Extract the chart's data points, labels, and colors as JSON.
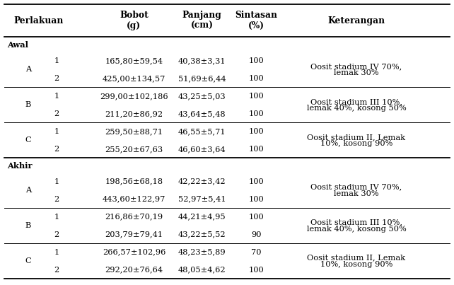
{
  "col_x": {
    "per1": 0.062,
    "per2": 0.125,
    "bobot": 0.295,
    "panjang": 0.445,
    "sintasan": 0.565,
    "ket": 0.785
  },
  "bg_color": "#ffffff",
  "fs": 8.2,
  "hfs": 8.8,
  "sections": [
    {
      "group": "Awal",
      "pairs": [
        {
          "per": "A",
          "rows": [
            {
              "rep": "1",
              "bobot": "165,80±59,54",
              "panjang": "40,38±3,31",
              "sintasan": "100"
            },
            {
              "rep": "2",
              "bobot": "425,00±134,57",
              "panjang": "51,69±6,44",
              "sintasan": "100"
            }
          ],
          "ket1": "Oosit stadium IV 70%,",
          "ket2": "lemak 30%"
        },
        {
          "per": "B",
          "rows": [
            {
              "rep": "1",
              "bobot": "299,00±102,186",
              "panjang": "43,25±5,03",
              "sintasan": "100"
            },
            {
              "rep": "2",
              "bobot": "211,20±86,92",
              "panjang": "43,64±5,48",
              "sintasan": "100"
            }
          ],
          "ket1": "Oosit stadium III 10%,",
          "ket2": "lemak 40%, kosong 50%"
        },
        {
          "per": "C",
          "rows": [
            {
              "rep": "1",
              "bobot": "259,50±88,71",
              "panjang": "46,55±5,71",
              "sintasan": "100"
            },
            {
              "rep": "2",
              "bobot": "255,20±67,63",
              "panjang": "46,60±3,64",
              "sintasan": "100"
            }
          ],
          "ket1": "Oosit stadium II, Lemak",
          "ket2": "10%, kosong 90%"
        }
      ]
    },
    {
      "group": "Akhir",
      "pairs": [
        {
          "per": "A",
          "rows": [
            {
              "rep": "1",
              "bobot": "198,56±68,18",
              "panjang": "42,22±3,42",
              "sintasan": "100"
            },
            {
              "rep": "2",
              "bobot": "443,60±122,97",
              "panjang": "52,97±5,41",
              "sintasan": "100"
            }
          ],
          "ket1": "Oosit stadium IV 70%,",
          "ket2": "lemak 30%"
        },
        {
          "per": "B",
          "rows": [
            {
              "rep": "1",
              "bobot": "216,86±70,19",
              "panjang": "44,21±4,95",
              "sintasan": "100"
            },
            {
              "rep": "2",
              "bobot": "203,79±79,41",
              "panjang": "43,22±5,52",
              "sintasan": "90"
            }
          ],
          "ket1": "Oosit stadium III 10%,",
          "ket2": "lemak 40%, kosong 50%"
        },
        {
          "per": "C",
          "rows": [
            {
              "rep": "1",
              "bobot": "266,57±102,96",
              "panjang": "48,23±5,89",
              "sintasan": "70"
            },
            {
              "rep": "2",
              "bobot": "292,20±76,64",
              "panjang": "48,05±4,62",
              "sintasan": "100"
            }
          ],
          "ket1": "Oosit stadium II, Lemak",
          "ket2": "10%, kosong 90%"
        }
      ]
    }
  ]
}
